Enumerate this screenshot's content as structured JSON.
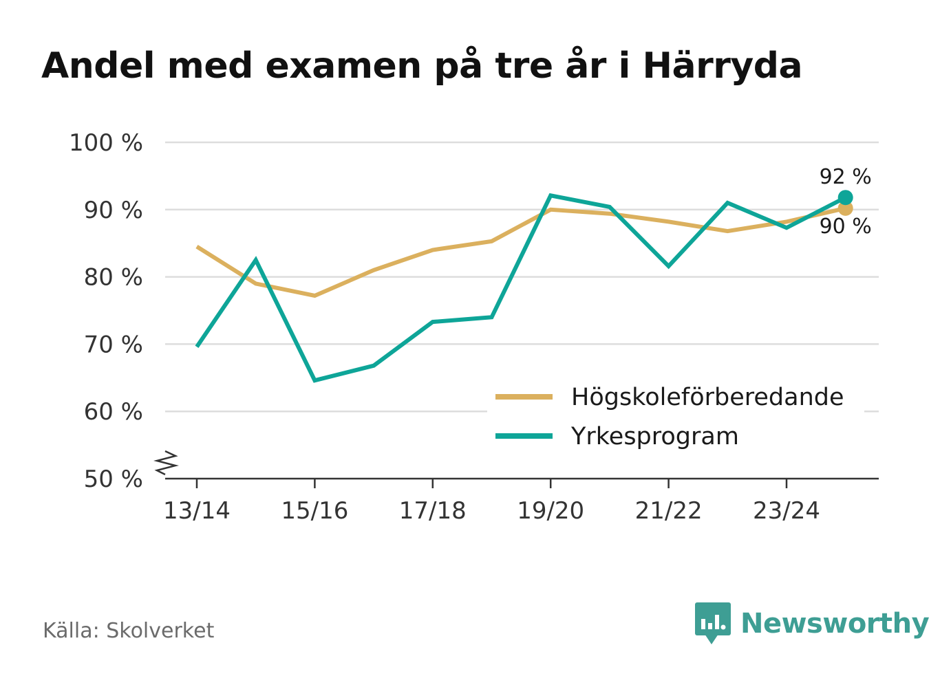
{
  "title": "Andel med examen på tre år i Härryda",
  "source": "Källa: Skolverket",
  "brand": {
    "name": "Newsworthy",
    "icon": "newsworthy-chart-icon",
    "color": "#3e9e94"
  },
  "chart_data": {
    "type": "line",
    "title": "Andel med examen på tre år i Härryda",
    "x": [
      "13/14",
      "14/15",
      "15/16",
      "16/17",
      "17/18",
      "18/19",
      "19/20",
      "20/21",
      "21/22",
      "22/23",
      "23/24",
      "24/25"
    ],
    "x_tick_labels": [
      "13/14",
      "15/16",
      "17/18",
      "19/20",
      "21/22",
      "23/24"
    ],
    "ylim": [
      50,
      100
    ],
    "y_ticks": [
      100,
      90,
      80,
      70,
      60,
      50
    ],
    "y_tick_labels": [
      "100 %",
      "90 %",
      "80 %",
      "70 %",
      "60 %",
      "50 %"
    ],
    "axis_break": true,
    "grid": true,
    "legend_position": "bottom-right",
    "series": [
      {
        "name": "Högskoleförberedande",
        "color": "#dbb05e",
        "values": [
          84.5,
          79,
          77.2,
          81,
          84,
          85.3,
          90,
          89.4,
          88.2,
          86.8,
          88.2,
          90.2
        ],
        "end_label": "90 %"
      },
      {
        "name": "Yrkesprogram",
        "color": "#0ea598",
        "values": [
          69.6,
          82.5,
          64.6,
          66.8,
          73.3,
          74,
          92.1,
          90.4,
          81.6,
          91,
          87.3,
          91.8
        ],
        "end_label": "92 %"
      }
    ]
  }
}
